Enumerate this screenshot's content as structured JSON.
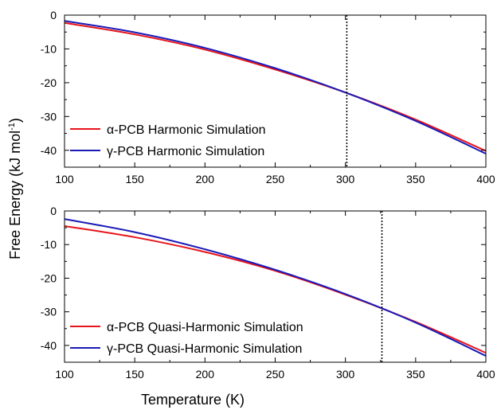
{
  "figure": {
    "xlabel": "Temperature (K)",
    "ylabel_main": "Free Energy (kJ mol",
    "ylabel_sup": "-1",
    "ylabel_close": ")"
  },
  "chart_data": [
    {
      "type": "line",
      "xlim": [
        100,
        400
      ],
      "ylim": [
        -45,
        0
      ],
      "xticks": [
        "100",
        "150",
        "200",
        "250",
        "300",
        "350",
        "400"
      ],
      "yticks": [
        "0",
        "-10",
        "-20",
        "-30",
        "-40"
      ],
      "xtick_values": [
        100,
        150,
        200,
        250,
        300,
        350,
        400
      ],
      "ytick_values": [
        0,
        -10,
        -20,
        -30,
        -40
      ],
      "grid": false,
      "legend_position": "bottom-left",
      "annotations": [
        {
          "type": "vertical-dotted-line",
          "x": 301
        }
      ],
      "series": [
        {
          "name": "α-PCB Harmonic Simulation",
          "color": "#e8141b",
          "x": [
            100,
            150,
            200,
            250,
            300,
            350,
            400
          ],
          "y": [
            -2.3,
            -5.7,
            -10.2,
            -16.1,
            -22.9,
            -30.9,
            -40.2
          ]
        },
        {
          "name": "γ-PCB Harmonic Simulation",
          "color": "#1a1ab8",
          "x": [
            100,
            150,
            200,
            250,
            300,
            350,
            400
          ],
          "y": [
            -1.7,
            -5.1,
            -9.7,
            -15.7,
            -22.9,
            -31.3,
            -41.0
          ]
        }
      ]
    },
    {
      "type": "line",
      "xlim": [
        100,
        400
      ],
      "ylim": [
        -45,
        0
      ],
      "xticks": [
        "100",
        "150",
        "200",
        "250",
        "300",
        "350",
        "400"
      ],
      "yticks": [
        "0",
        "-10",
        "-20",
        "-30",
        "-40"
      ],
      "xtick_values": [
        100,
        150,
        200,
        250,
        300,
        350,
        400
      ],
      "ytick_values": [
        0,
        -10,
        -20,
        -30,
        -40
      ],
      "grid": false,
      "legend_position": "bottom-left",
      "annotations": [
        {
          "type": "vertical-dotted-line",
          "x": 326
        }
      ],
      "series": [
        {
          "name": "α-PCB Quasi-Harmonic Simulation",
          "color": "#e8141b",
          "x": [
            100,
            150,
            200,
            250,
            300,
            350,
            400
          ],
          "y": [
            -4.5,
            -7.8,
            -12.2,
            -17.8,
            -24.9,
            -33.0,
            -42.2
          ]
        },
        {
          "name": "γ-PCB Quasi-Harmonic Simulation",
          "color": "#1a1ab8",
          "x": [
            100,
            150,
            200,
            250,
            300,
            350,
            400
          ],
          "y": [
            -2.4,
            -6.3,
            -11.4,
            -17.5,
            -24.7,
            -33.2,
            -43.1
          ]
        }
      ]
    }
  ]
}
